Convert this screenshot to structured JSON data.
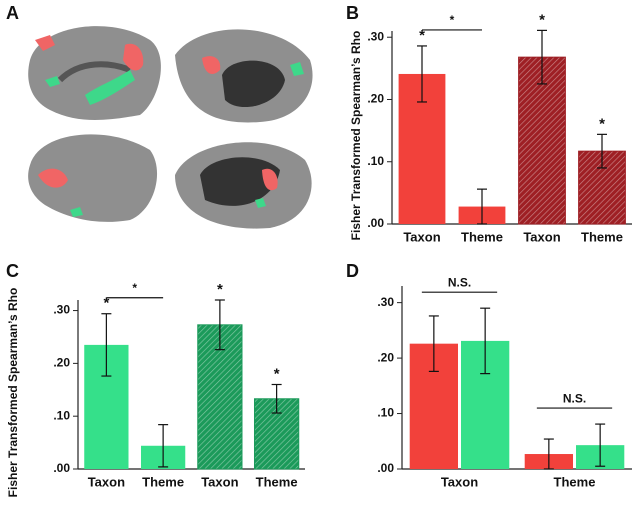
{
  "panel_labels": [
    "A",
    "B",
    "C",
    "D"
  ],
  "chart_data": [
    {
      "type": "bar",
      "y_label": "Fisher Transformed Spearman’s Rho",
      "categories": [
        "Taxon",
        "Theme",
        "Taxon",
        "Theme"
      ],
      "values": [
        0.241,
        0.028,
        0.268,
        0.117
      ],
      "errors": [
        0.045,
        0.028,
        0.043,
        0.027
      ],
      "colors": [
        "#f2413b",
        "#f2413b",
        "#9e1f24",
        "#9e1f24"
      ],
      "hatched": [
        false,
        false,
        true,
        true
      ],
      "stars": [
        "*",
        null,
        "*",
        "*"
      ],
      "brackets": [
        {
          "from": 0,
          "to": 1,
          "label": "*"
        }
      ],
      "ylim": [
        0,
        0.31
      ],
      "yticks": [
        {
          "value": 0,
          "label": ".00"
        },
        {
          "value": 0.1,
          "label": ".10"
        },
        {
          "value": 0.2,
          "label": ".20"
        },
        {
          "value": 0.3,
          "label": ".30"
        }
      ]
    },
    {
      "type": "bar",
      "y_label": "Fisher Transformed Spearman’s Rho",
      "categories": [
        "Taxon",
        "Theme",
        "Taxon",
        "Theme"
      ],
      "values": [
        0.235,
        0.044,
        0.273,
        0.133
      ],
      "errors": [
        0.059,
        0.04,
        0.047,
        0.027
      ],
      "colors": [
        "#35e08a",
        "#35e08a",
        "#1b9a5a",
        "#1b9a5a"
      ],
      "hatched": [
        false,
        false,
        true,
        true
      ],
      "stars": [
        "*",
        null,
        "*",
        "*"
      ],
      "brackets": [
        {
          "from": 0,
          "to": 1,
          "label": "*"
        }
      ],
      "ylim": [
        0,
        0.32
      ],
      "yticks": [
        {
          "value": 0,
          "label": ".00"
        },
        {
          "value": 0.1,
          "label": ".10"
        },
        {
          "value": 0.2,
          "label": ".20"
        },
        {
          "value": 0.3,
          "label": ".30"
        }
      ]
    },
    {
      "type": "grouped_bar",
      "categories": [
        "Taxon",
        "Theme"
      ],
      "series": [
        {
          "color": "#f2413b",
          "values": [
            0.226,
            0.027
          ],
          "errors": [
            0.05,
            0.027
          ]
        },
        {
          "color": "#35e08a",
          "values": [
            0.231,
            0.043
          ],
          "errors": [
            0.059,
            0.038
          ]
        }
      ],
      "brackets": [
        {
          "category": 0,
          "label": "N.S."
        },
        {
          "category": 1,
          "label": "N.S."
        }
      ],
      "ylim": [
        0,
        0.33
      ],
      "yticks": [
        {
          "value": 0,
          "label": ".00"
        },
        {
          "value": 0.1,
          "label": ".10"
        },
        {
          "value": 0.2,
          "label": ".20"
        },
        {
          "value": 0.3,
          "label": ".30"
        }
      ]
    }
  ]
}
